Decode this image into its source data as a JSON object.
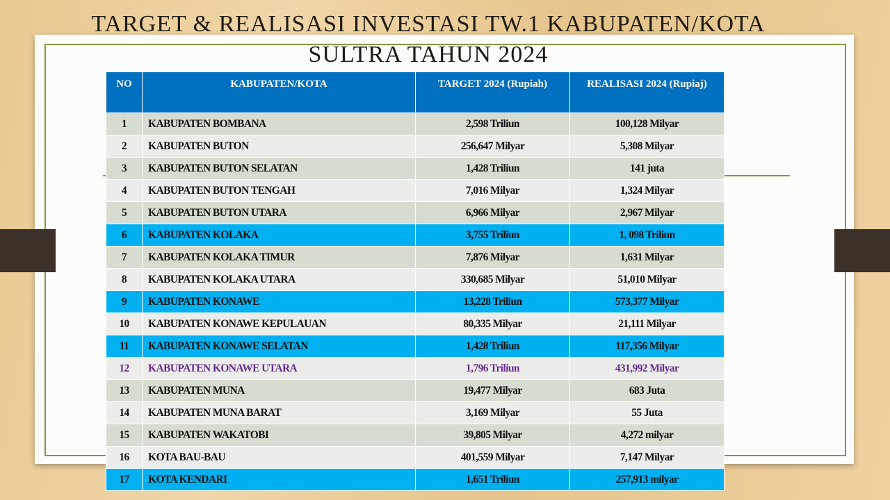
{
  "header": {
    "title_lines": [
      "TARGET & REALISASI INVESTASI TW.1 KABUPATEN/KOTA",
      "SULTRA TAHUN 2024"
    ]
  },
  "table": {
    "header": [
      "NO",
      "KABUPATEN/KOTA",
      "TARGET 2024 (Rupiah)",
      "REALISASI 2024 (Rupiaj)"
    ],
    "rows": [
      [
        "1",
        "KABUPATEN BOMBANA",
        "2,598  Triliun",
        "100,128 Milyar"
      ],
      [
        "2",
        "KABUPATEN BUTON",
        "256,647 Milyar",
        "5,308 Milyar"
      ],
      [
        "3",
        "KABUPATEN BUTON SELATAN",
        "1,428 Triliun",
        "141 juta"
      ],
      [
        "4",
        "KABUPATEN BUTON TENGAH",
        "7,016 Milyar",
        "1,324 Milyar"
      ],
      [
        "5",
        "KABUPATEN BUTON UTARA",
        "6,966 Milyar",
        "2,967 Milyar"
      ],
      [
        "6",
        "KABUPATEN KOLAKA",
        "3,755 Triliun",
        "1, 098 Triliun"
      ],
      [
        "7",
        "KABUPATEN KOLAKA TIMUR",
        "7,876 Milyar",
        "1,631 Milyar"
      ],
      [
        "8",
        "KABUPATEN KOLAKA UTARA",
        "330,685 Milyar",
        "51,010 Milyar"
      ],
      [
        "9",
        "KABUPATEN KONAWE",
        "13,228 Triliun",
        "573,377 Milyar"
      ],
      [
        "10",
        "KABUPATEN KONAWE KEPULAUAN",
        "80,335 Milyar",
        "21,111 Milyar"
      ],
      [
        "11",
        "KABUPATEN KONAWE SELATAN",
        "1,428 Triliun",
        "117,356 Milyar"
      ],
      [
        "12",
        "KABUPATEN KONAWE UTARA",
        "1,796 Triliun",
        "431,992  Milyar"
      ],
      [
        "13",
        "KABUPATEN MUNA",
        "19,477 Milyar",
        "683 Juta"
      ],
      [
        "14",
        "KABUPATEN MUNA BARAT",
        "3,169 Milyar",
        "55 Juta"
      ],
      [
        "15",
        "KABUPATEN WAKATOBI",
        "39,805 Milyar",
        "4,272 milyar"
      ],
      [
        "16",
        "KOTA BAU-BAU",
        "401,559 Milyar",
        "7,147 Milyar"
      ],
      [
        "17",
        "KOTA KENDARI",
        "1,651 Triliun",
        "257,913 milyar"
      ]
    ]
  }
}
